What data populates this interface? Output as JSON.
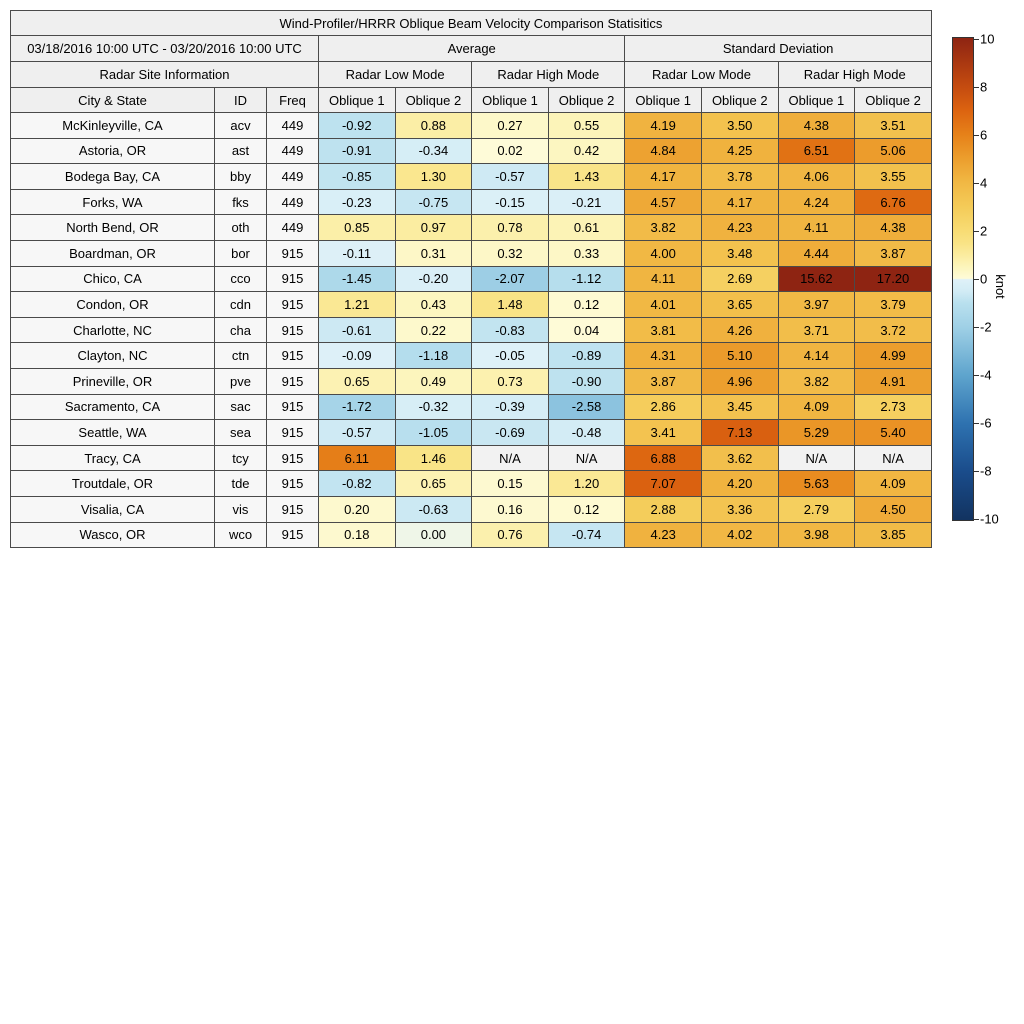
{
  "title": "Wind-Profiler/HRRR Oblique Beam Velocity Comparison Statisitics",
  "header": {
    "date_range": "03/18/2016 10:00 UTC - 03/20/2016 10:00 UTC",
    "group_average": "Average",
    "group_std": "Standard Deviation",
    "site_info": "Radar Site Information",
    "modes": [
      "Radar Low Mode",
      "Radar High Mode",
      "Radar Low Mode",
      "Radar High Mode"
    ],
    "col_city": "City & State",
    "col_id": "ID",
    "col_freq": "Freq",
    "oblique": [
      "Oblique 1",
      "Oblique 2"
    ]
  },
  "chart_data": {
    "type": "heatmap",
    "columns": [
      "City & State",
      "ID",
      "Freq",
      "Average Radar Low Mode Oblique 1",
      "Average Radar Low Mode Oblique 2",
      "Average Radar High Mode Oblique 1",
      "Average Radar High Mode Oblique 2",
      "Std Dev Radar Low Mode Oblique 1",
      "Std Dev Radar Low Mode Oblique 2",
      "Std Dev Radar High Mode Oblique 1",
      "Std Dev Radar High Mode Oblique 2"
    ],
    "rows": [
      {
        "city": "McKinleyville, CA",
        "id": "acv",
        "freq": "449",
        "values": [
          -0.92,
          0.88,
          0.27,
          0.55,
          4.19,
          3.5,
          4.38,
          3.51
        ]
      },
      {
        "city": "Astoria, OR",
        "id": "ast",
        "freq": "449",
        "values": [
          -0.91,
          -0.34,
          0.02,
          0.42,
          4.84,
          4.25,
          6.51,
          5.06
        ]
      },
      {
        "city": "Bodega Bay, CA",
        "id": "bby",
        "freq": "449",
        "values": [
          -0.85,
          1.3,
          -0.57,
          1.43,
          4.17,
          3.78,
          4.06,
          3.55
        ]
      },
      {
        "city": "Forks, WA",
        "id": "fks",
        "freq": "449",
        "values": [
          -0.23,
          -0.75,
          -0.15,
          -0.21,
          4.57,
          4.17,
          4.24,
          6.76
        ]
      },
      {
        "city": "North Bend, OR",
        "id": "oth",
        "freq": "449",
        "values": [
          0.85,
          0.97,
          0.78,
          0.61,
          3.82,
          4.23,
          4.11,
          4.38
        ]
      },
      {
        "city": "Boardman, OR",
        "id": "bor",
        "freq": "915",
        "values": [
          -0.11,
          0.31,
          0.32,
          0.33,
          4.0,
          3.48,
          4.44,
          3.87
        ]
      },
      {
        "city": "Chico, CA",
        "id": "cco",
        "freq": "915",
        "values": [
          -1.45,
          -0.2,
          -2.07,
          -1.12,
          4.11,
          2.69,
          15.62,
          17.2
        ]
      },
      {
        "city": "Condon, OR",
        "id": "cdn",
        "freq": "915",
        "values": [
          1.21,
          0.43,
          1.48,
          0.12,
          4.01,
          3.65,
          3.97,
          3.79
        ]
      },
      {
        "city": "Charlotte, NC",
        "id": "cha",
        "freq": "915",
        "values": [
          -0.61,
          0.22,
          -0.83,
          0.04,
          3.81,
          4.26,
          3.71,
          3.72
        ]
      },
      {
        "city": "Clayton, NC",
        "id": "ctn",
        "freq": "915",
        "values": [
          -0.09,
          -1.18,
          -0.05,
          -0.89,
          4.31,
          5.1,
          4.14,
          4.99
        ]
      },
      {
        "city": "Prineville, OR",
        "id": "pve",
        "freq": "915",
        "values": [
          0.65,
          0.49,
          0.73,
          -0.9,
          3.87,
          4.96,
          3.82,
          4.91
        ]
      },
      {
        "city": "Sacramento, CA",
        "id": "sac",
        "freq": "915",
        "values": [
          -1.72,
          -0.32,
          -0.39,
          -2.58,
          2.86,
          3.45,
          4.09,
          2.73
        ]
      },
      {
        "city": "Seattle, WA",
        "id": "sea",
        "freq": "915",
        "values": [
          -0.57,
          -1.05,
          -0.69,
          -0.48,
          3.41,
          7.13,
          5.29,
          5.4
        ]
      },
      {
        "city": "Tracy, CA",
        "id": "tcy",
        "freq": "915",
        "values": [
          6.11,
          1.46,
          "N/A",
          "N/A",
          6.88,
          3.62,
          "N/A",
          "N/A"
        ]
      },
      {
        "city": "Troutdale, OR",
        "id": "tde",
        "freq": "915",
        "values": [
          -0.82,
          0.65,
          0.15,
          1.2,
          7.07,
          4.2,
          5.63,
          4.09
        ]
      },
      {
        "city": "Visalia, CA",
        "id": "vis",
        "freq": "915",
        "values": [
          0.2,
          -0.63,
          0.16,
          0.12,
          2.88,
          3.36,
          2.79,
          4.5
        ]
      },
      {
        "city": "Wasco, OR",
        "id": "wco",
        "freq": "915",
        "values": [
          0.18,
          0.0,
          0.76,
          -0.74,
          4.23,
          4.02,
          3.98,
          3.85
        ]
      }
    ],
    "na_text": "N/A",
    "na_color": "#f2f2f2",
    "value_range": [
      -10,
      10
    ],
    "colorbar": {
      "label": "knot",
      "ticks": [
        10,
        8,
        6,
        4,
        2,
        0,
        -2,
        -4,
        -6,
        -8,
        -10
      ],
      "stops": [
        {
          "v": -10,
          "c": "#123360"
        },
        {
          "v": -8,
          "c": "#1a4c8b"
        },
        {
          "v": -6,
          "c": "#2e72b0"
        },
        {
          "v": -4,
          "c": "#5ea4cd"
        },
        {
          "v": -2,
          "c": "#9fd0e6"
        },
        {
          "v": -1,
          "c": "#b9e0ee"
        },
        {
          "v": -0.5,
          "c": "#d2ecf5"
        },
        {
          "v": -0.02,
          "c": "#dff1f8"
        },
        {
          "v": 0.02,
          "c": "#fefbd8"
        },
        {
          "v": 0.5,
          "c": "#fcf5bc"
        },
        {
          "v": 1,
          "c": "#fbec9f"
        },
        {
          "v": 1.5,
          "c": "#f9e385"
        },
        {
          "v": 2,
          "c": "#f8dc74"
        },
        {
          "v": 3,
          "c": "#f4cb58"
        },
        {
          "v": 4,
          "c": "#f1b844"
        },
        {
          "v": 5,
          "c": "#ec9e2d"
        },
        {
          "v": 6,
          "c": "#e68119"
        },
        {
          "v": 7,
          "c": "#dc6310"
        },
        {
          "v": 8,
          "c": "#c44b10"
        },
        {
          "v": 10,
          "c": "#8e2412"
        }
      ]
    }
  }
}
